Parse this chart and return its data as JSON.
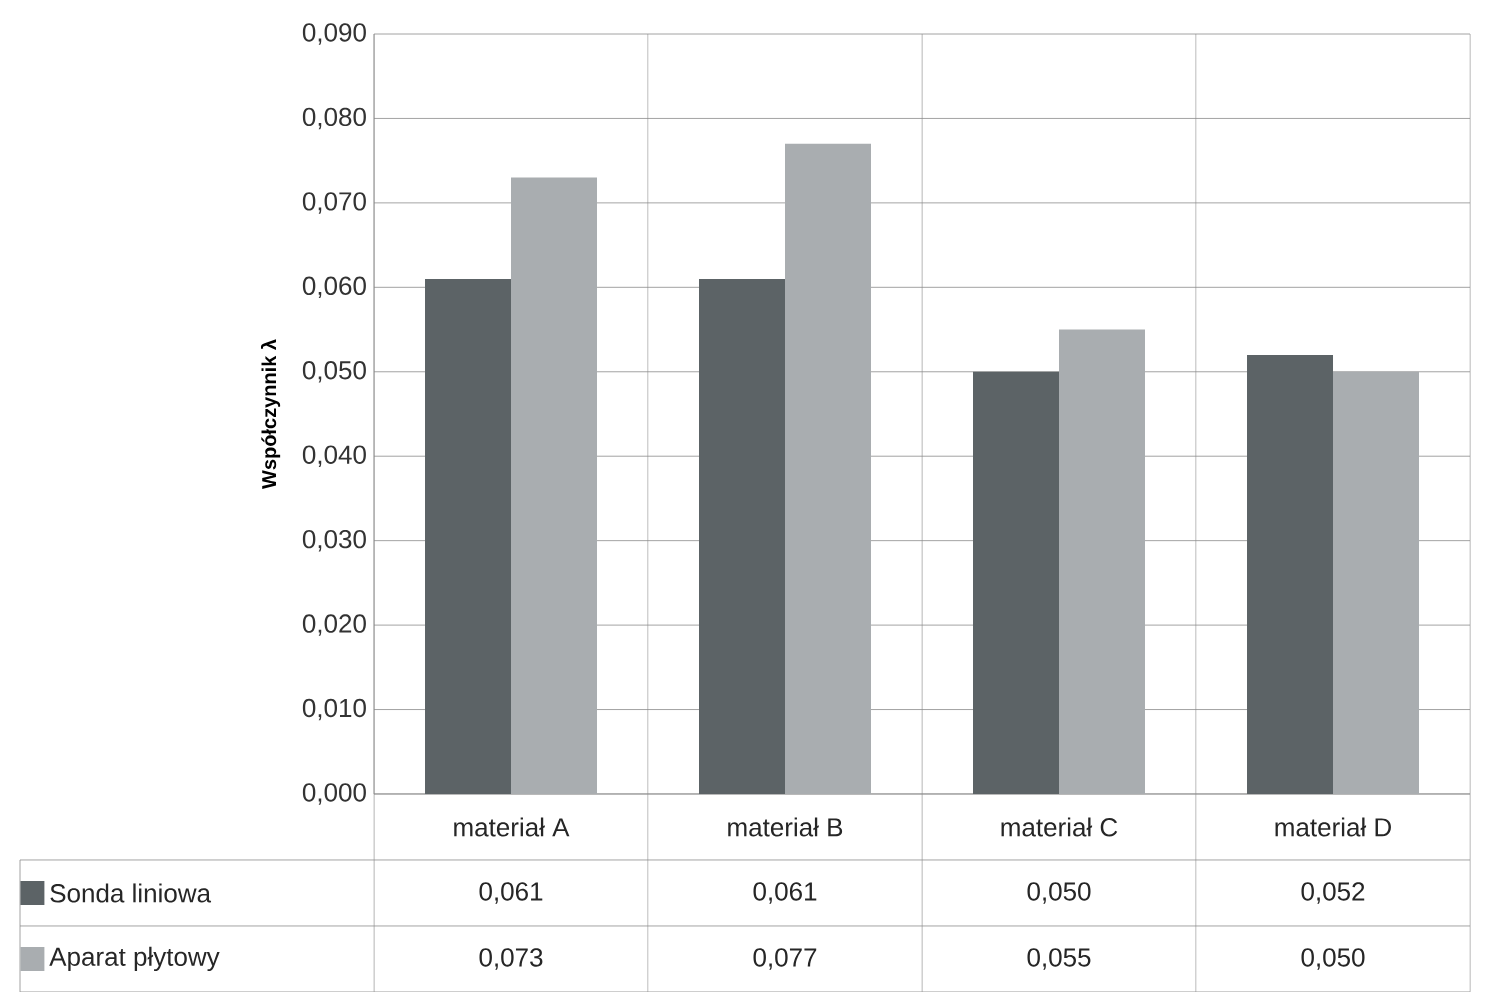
{
  "chart_data": {
    "type": "bar",
    "ylabel": "Współczynnik λ",
    "categories": [
      "materiał A",
      "materiał B",
      "materiał C",
      "materiał D"
    ],
    "series": [
      {
        "name": "Sonda liniowa",
        "color": "#5c6366",
        "values": [
          0.061,
          0.061,
          0.05,
          0.052
        ],
        "value_labels": [
          "0,061",
          "0,061",
          "0,050",
          "0,052"
        ]
      },
      {
        "name": "Aparat płytowy",
        "color": "#a9adb0",
        "values": [
          0.073,
          0.077,
          0.055,
          0.05
        ],
        "value_labels": [
          "0,073",
          "0,077",
          "0,055",
          "0,050"
        ]
      }
    ],
    "ylim": [
      0,
      0.09
    ],
    "yticks": [
      {
        "value": 0,
        "label": "0,000"
      },
      {
        "value": 0.01,
        "label": "0,010"
      },
      {
        "value": 0.02,
        "label": "0,020"
      },
      {
        "value": 0.03,
        "label": "0,030"
      },
      {
        "value": 0.04,
        "label": "0,040"
      },
      {
        "value": 0.05,
        "label": "0,050"
      },
      {
        "value": 0.06,
        "label": "0,060"
      },
      {
        "value": 0.07,
        "label": "0,070"
      },
      {
        "value": 0.08,
        "label": "0,080"
      },
      {
        "value": 0.09,
        "label": "0,090"
      }
    ],
    "grid": "y",
    "legend": "bottom left"
  }
}
